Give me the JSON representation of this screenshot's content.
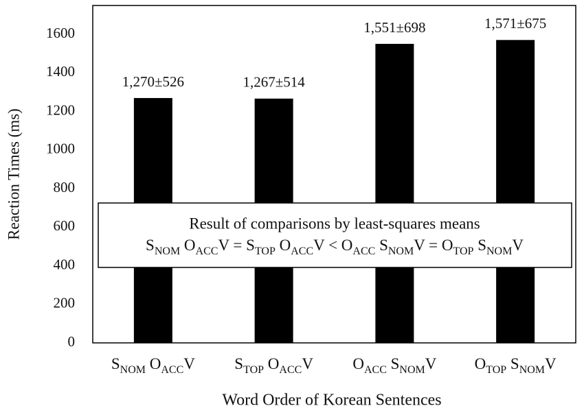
{
  "chart_data": {
    "type": "bar",
    "x_label": "Word Order of Korean Sentences",
    "y_label": "Reaction Times (ms)",
    "categories": [
      [
        "S",
        "NOM",
        " O",
        "ACC",
        "V"
      ],
      [
        "S",
        "TOP",
        " O",
        "ACC",
        "V"
      ],
      [
        "O",
        "ACC",
        " S",
        "NOM",
        "V"
      ],
      [
        "O",
        "TOP",
        " S",
        "NOM",
        "V"
      ]
    ],
    "values": [
      1270,
      1267,
      1551,
      1571
    ],
    "value_labels": [
      "1,270±526",
      "1,267±514",
      "1,551±698",
      "1,571±675"
    ],
    "color": "#000000",
    "ylim": [
      0,
      1750
    ],
    "yticks": [
      0,
      200,
      400,
      600,
      800,
      1000,
      1200,
      1400,
      1600
    ],
    "grid": false,
    "annotation": {
      "title": "Result of comparisons by least-squares means",
      "formula": [
        "S",
        "NOM",
        " O",
        "ACC",
        "V = S",
        "TOP",
        " O",
        "ACC",
        "V < O",
        "ACC",
        " S",
        "NOM",
        "V = O",
        "TOP",
        " S",
        "NOM",
        "V"
      ]
    }
  }
}
